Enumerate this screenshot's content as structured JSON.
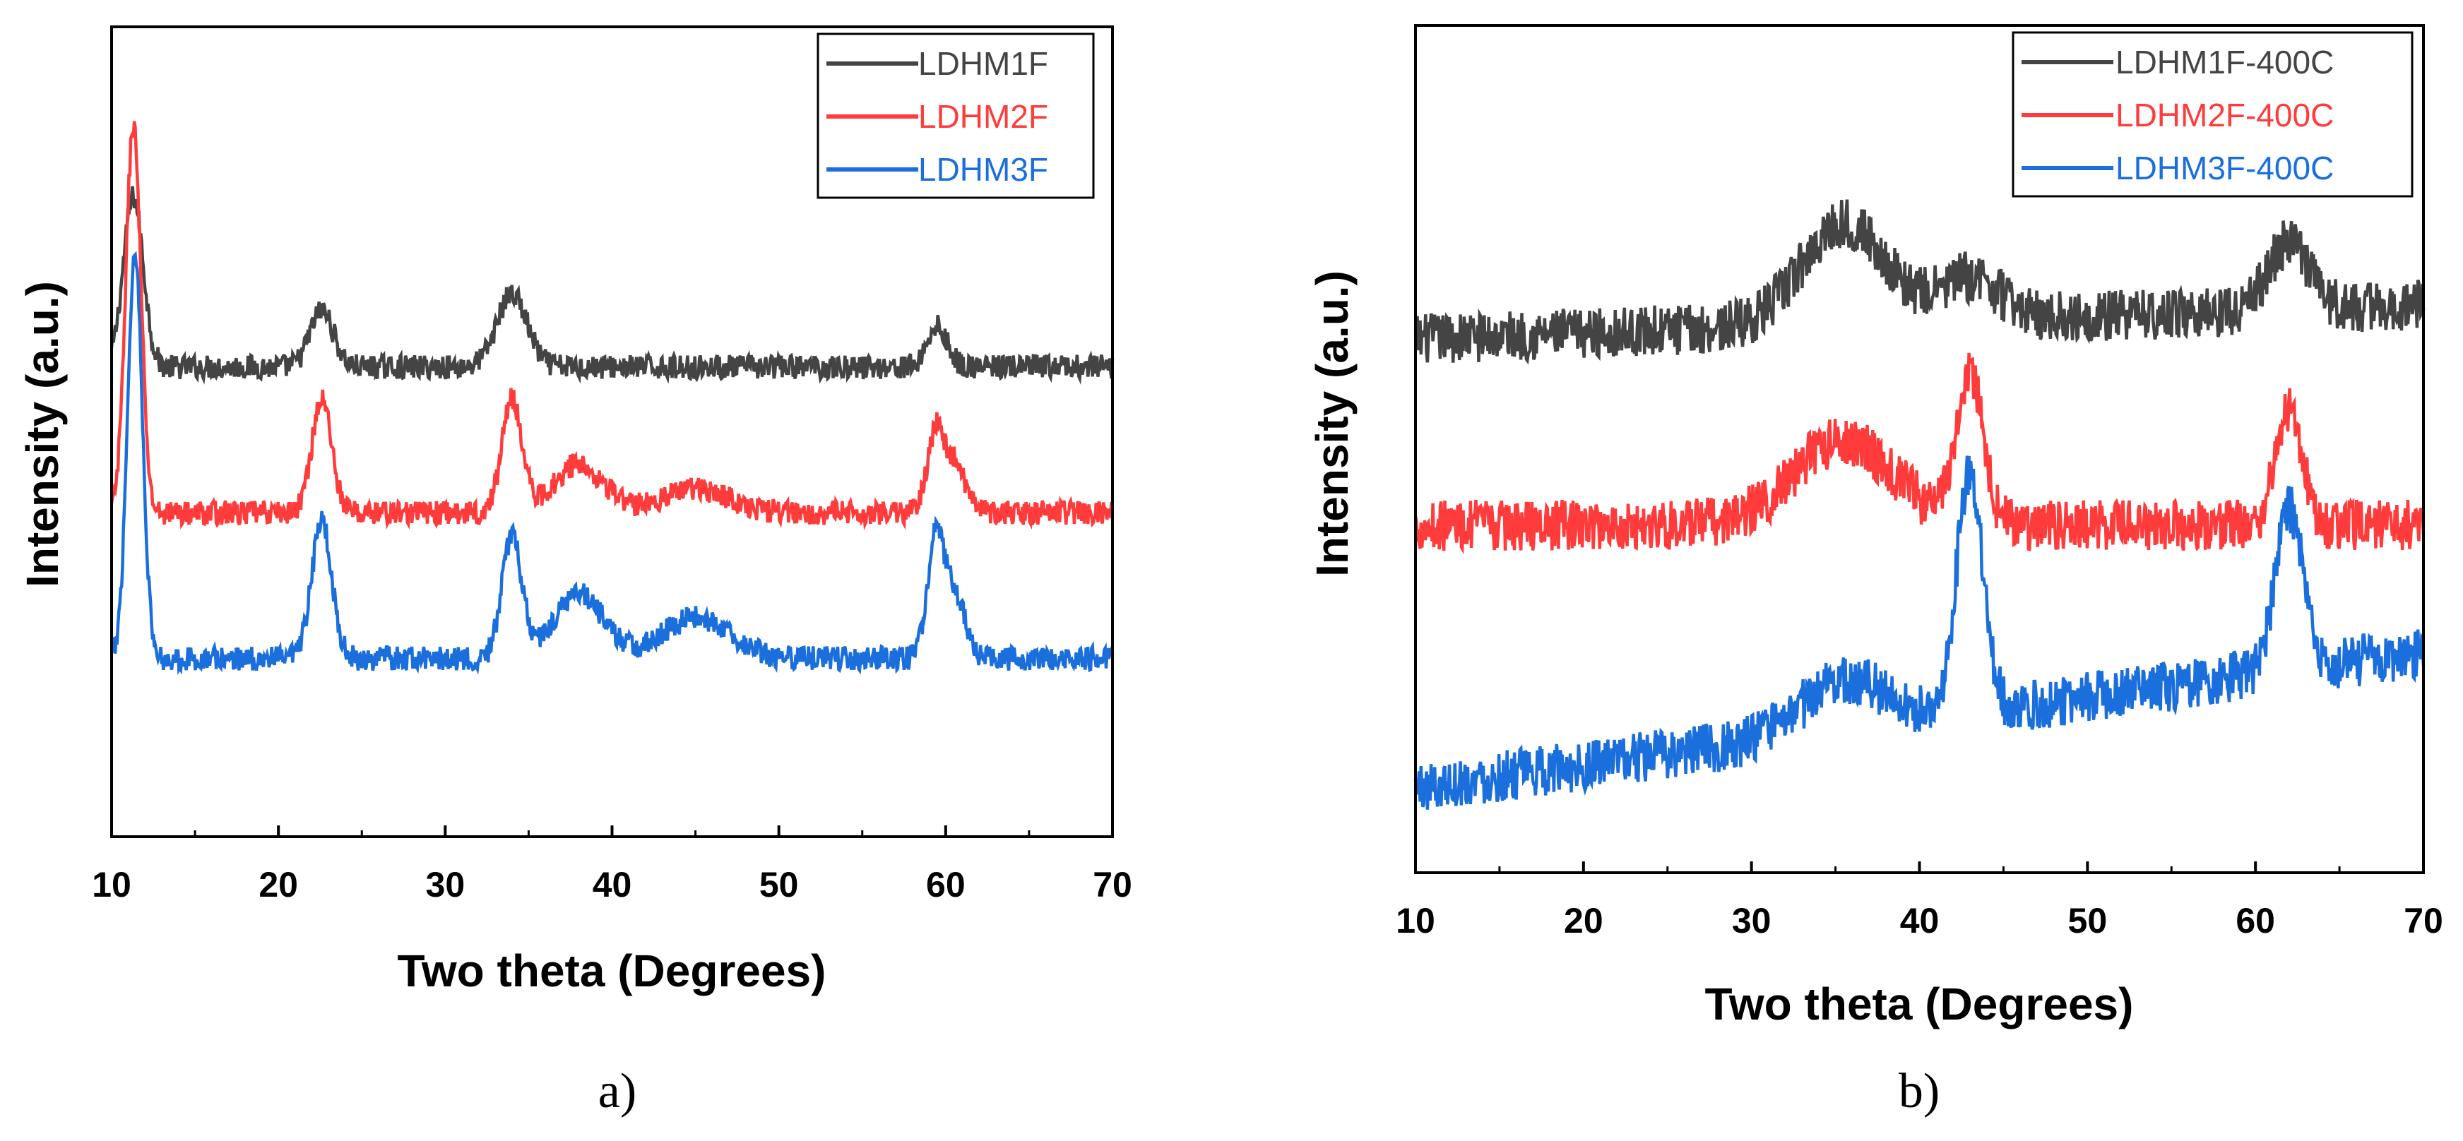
{
  "chart_data": [
    {
      "type": "line",
      "panel_caption": "a)",
      "title": "",
      "xlabel": "Two theta (Degrees)",
      "ylabel": "Intensity (a.u.)",
      "xlim": [
        10,
        70
      ],
      "ylim": [
        0,
        1
      ],
      "xticks": [
        "10",
        "20",
        "30",
        "40",
        "50",
        "60",
        "70"
      ],
      "yticks": [],
      "legend_position": "top-right",
      "series": [
        {
          "name": "LDHM1F",
          "color": "#444444",
          "baseline": 0.58,
          "noise": 0.03,
          "peaks": [
            {
              "x": 11.3,
              "h": 0.21,
              "w": 0.6
            },
            {
              "x": 22.6,
              "h": 0.07,
              "w": 0.7
            },
            {
              "x": 34.0,
              "h": 0.09,
              "w": 0.9
            },
            {
              "x": 59.5,
              "h": 0.05,
              "w": 0.6
            }
          ]
        },
        {
          "name": "LDHM2F",
          "color": "#ff3b3b",
          "baseline": 0.4,
          "noise": 0.03,
          "peaks": [
            {
              "x": 11.3,
              "h": 0.48,
              "w": 0.45
            },
            {
              "x": 22.6,
              "h": 0.14,
              "w": 0.6
            },
            {
              "x": 34.0,
              "h": 0.14,
              "w": 0.6
            },
            {
              "x": 38.0,
              "h": 0.06,
              "w": 1.5
            },
            {
              "x": 45.0,
              "h": 0.03,
              "w": 2.0
            },
            {
              "x": 59.4,
              "h": 0.1,
              "w": 0.5
            },
            {
              "x": 60.6,
              "h": 0.06,
              "w": 0.6
            }
          ]
        },
        {
          "name": "LDHM3F",
          "color": "#1a6fdd",
          "baseline": 0.22,
          "noise": 0.03,
          "peaks": [
            {
              "x": 11.4,
              "h": 0.5,
              "w": 0.45
            },
            {
              "x": 22.6,
              "h": 0.17,
              "w": 0.6
            },
            {
              "x": 34.0,
              "h": 0.15,
              "w": 0.6
            },
            {
              "x": 38.0,
              "h": 0.08,
              "w": 1.5
            },
            {
              "x": 45.0,
              "h": 0.05,
              "w": 2.0
            },
            {
              "x": 59.4,
              "h": 0.15,
              "w": 0.5
            },
            {
              "x": 60.6,
              "h": 0.08,
              "w": 0.6
            }
          ]
        }
      ]
    },
    {
      "type": "line",
      "panel_caption": "b)",
      "title": "",
      "xlabel": "Two theta (Degrees)",
      "ylabel": "Intensity (a.u.)",
      "xlim": [
        10,
        70
      ],
      "ylim": [
        0,
        1
      ],
      "xticks": [
        "10",
        "20",
        "30",
        "40",
        "50",
        "60",
        "70"
      ],
      "yticks": [],
      "legend_position": "top-right",
      "series": [
        {
          "name": "LDHM1F-400C",
          "color": "#444444",
          "baseline": 0.63,
          "slope": 0.04,
          "noise": 0.06,
          "peaks": [
            {
              "x": 35.5,
              "h": 0.12,
              "w": 2.5
            },
            {
              "x": 43.0,
              "h": 0.05,
              "w": 1.8
            },
            {
              "x": 62.0,
              "h": 0.08,
              "w": 1.2
            }
          ]
        },
        {
          "name": "LDHM2F-400C",
          "color": "#ff3b3b",
          "baseline": 0.41,
          "slope": 0.0,
          "noise": 0.06,
          "peaks": [
            {
              "x": 35.5,
              "h": 0.1,
              "w": 3.0
            },
            {
              "x": 43.0,
              "h": 0.18,
              "w": 0.8
            },
            {
              "x": 62.0,
              "h": 0.14,
              "w": 0.8
            }
          ]
        },
        {
          "name": "LDHM3F-400C",
          "color": "#1a6fdd",
          "baseline": 0.1,
          "slope": 0.16,
          "noise": 0.06,
          "peaks": [
            {
              "x": 35.5,
              "h": 0.06,
              "w": 2.5
            },
            {
              "x": 43.0,
              "h": 0.28,
              "w": 0.8
            },
            {
              "x": 62.0,
              "h": 0.19,
              "w": 0.8
            }
          ]
        }
      ]
    }
  ]
}
